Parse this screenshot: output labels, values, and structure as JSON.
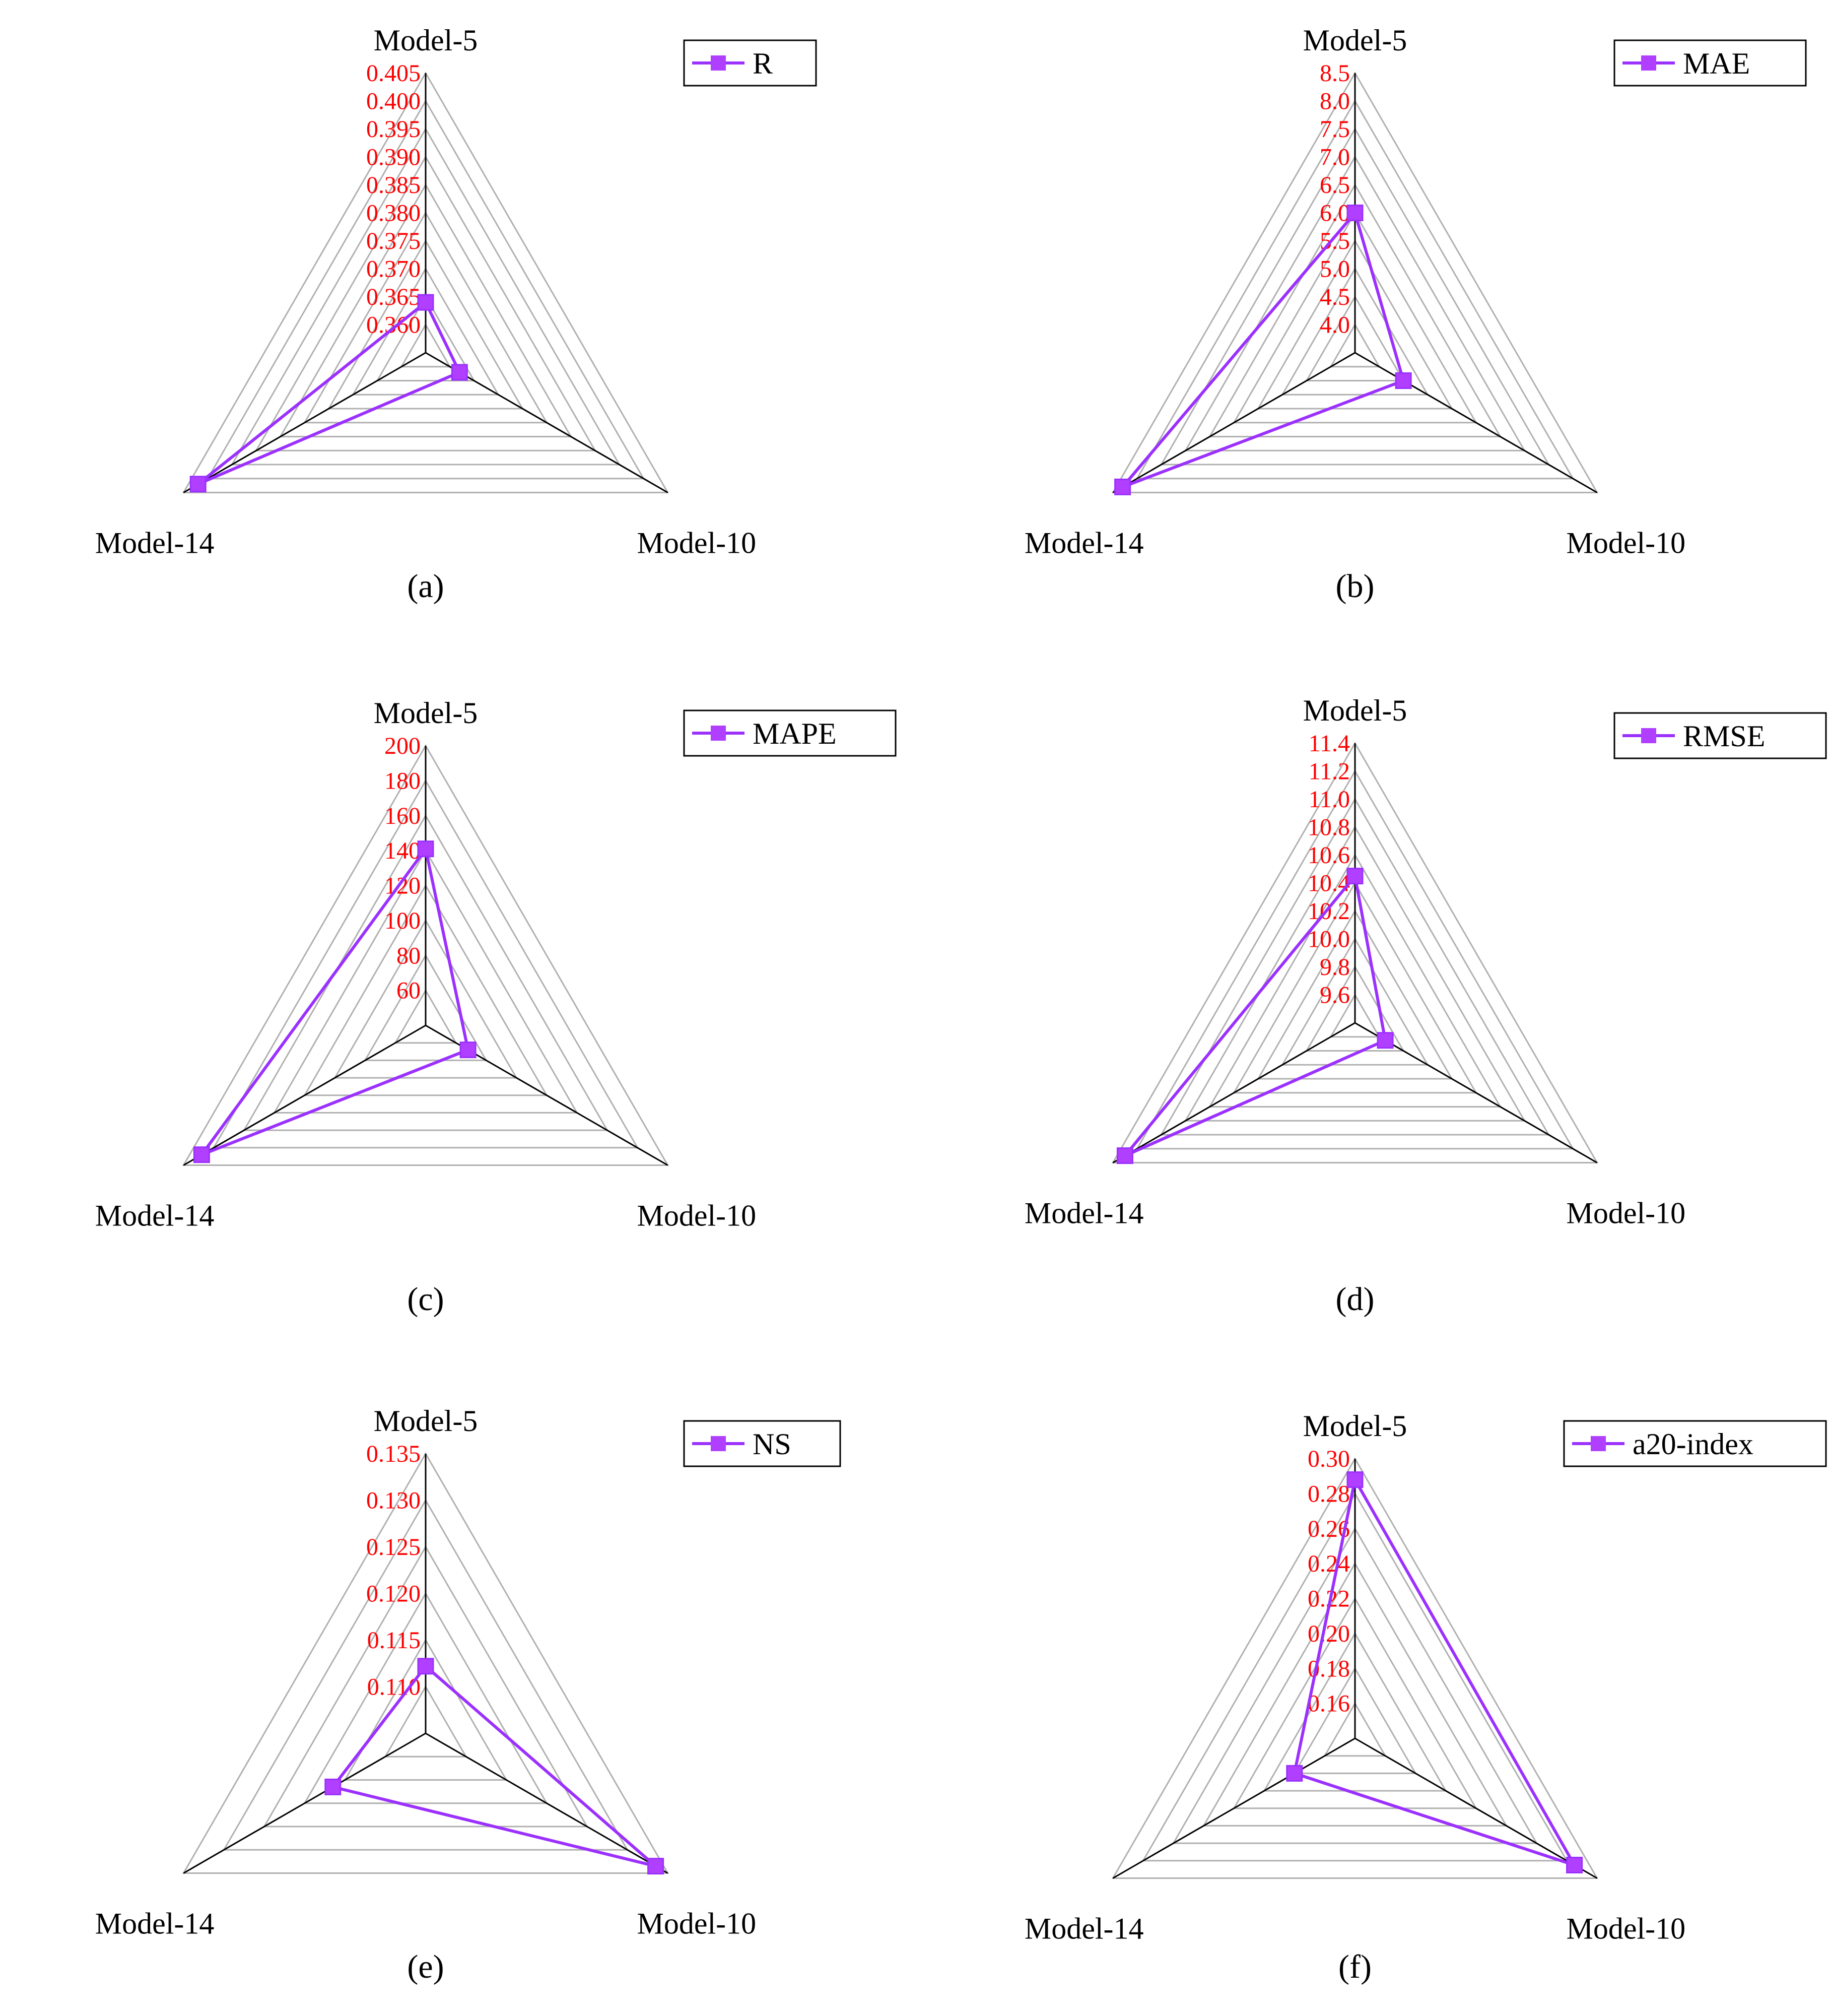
{
  "colors": {
    "series": "#9b30ff",
    "marker": "#b03fff",
    "tick": "#ff0000",
    "grid": "#b0b0b0",
    "spoke": "#000000",
    "legend_border": "#000000"
  },
  "chart_data": [
    {
      "type": "radar",
      "panel": "(a)",
      "axes": [
        "Model-5",
        "Model-10",
        "Model-14"
      ],
      "series": [
        {
          "name": "R",
          "values": [
            0.364,
            0.362,
            0.402
          ]
        }
      ],
      "range": [
        0.355,
        0.405
      ],
      "ticks": [
        "0.360",
        "0.365",
        "0.370",
        "0.375",
        "0.380",
        "0.385",
        "0.390",
        "0.395",
        "0.400",
        "0.405"
      ],
      "legend": "R"
    },
    {
      "type": "radar",
      "panel": "(b)",
      "axes": [
        "Model-5",
        "Model-10",
        "Model-14"
      ],
      "series": [
        {
          "name": "MAE",
          "values": [
            6.0,
            4.5,
            8.3
          ]
        }
      ],
      "range": [
        3.5,
        8.5
      ],
      "ticks": [
        "4.0",
        "4.5",
        "5.0",
        "5.5",
        "6.0",
        "6.5",
        "7.0",
        "7.5",
        "8.0",
        "8.5"
      ],
      "legend": "MAE"
    },
    {
      "type": "radar",
      "panel": "(c)",
      "axes": [
        "Model-5",
        "Model-10",
        "Model-14"
      ],
      "series": [
        {
          "name": "MAPE",
          "values": [
            141,
            68,
            188
          ]
        }
      ],
      "range": [
        40,
        200
      ],
      "ticks": [
        "60",
        "80",
        "100",
        "120",
        "140",
        "160",
        "180",
        "200"
      ],
      "legend": "MAPE"
    },
    {
      "type": "radar",
      "panel": "(d)",
      "axes": [
        "Model-5",
        "Model-10",
        "Model-14"
      ],
      "series": [
        {
          "name": "RMSE",
          "values": [
            10.45,
            9.65,
            11.3
          ]
        }
      ],
      "range": [
        9.4,
        11.4
      ],
      "ticks": [
        "9.6",
        "9.8",
        "10.0",
        "10.2",
        "10.4",
        "10.6",
        "10.8",
        "11.0",
        "11.2",
        "11.4"
      ],
      "legend": "RMSE"
    },
    {
      "type": "radar",
      "panel": "(e)",
      "axes": [
        "Model-5",
        "Model-10",
        "Model-14"
      ],
      "series": [
        {
          "name": "NS",
          "values": [
            0.1122,
            0.1335,
            0.1165
          ]
        }
      ],
      "range": [
        0.105,
        0.135
      ],
      "ticks": [
        "0.110",
        "0.115",
        "0.120",
        "0.125",
        "0.130",
        "0.135"
      ],
      "legend": "NS"
    },
    {
      "type": "radar",
      "panel": "(f)",
      "axes": [
        "Model-5",
        "Model-10",
        "Model-14"
      ],
      "series": [
        {
          "name": "a20-index",
          "values": [
            0.288,
            0.285,
            0.18
          ]
        }
      ],
      "range": [
        0.14,
        0.3
      ],
      "ticks": [
        "0.16",
        "0.18",
        "0.20",
        "0.22",
        "0.24",
        "0.26",
        "0.28",
        "0.30"
      ],
      "legend": "a20-index"
    }
  ]
}
